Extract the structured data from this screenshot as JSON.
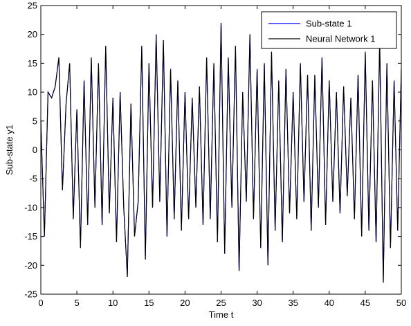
{
  "chart_data": {
    "type": "line",
    "title": "",
    "xlabel": "Time t",
    "ylabel": "Sub-state y1",
    "xlim": [
      0,
      50
    ],
    "ylim": [
      -25,
      25
    ],
    "xticks": [
      0,
      5,
      10,
      15,
      20,
      25,
      30,
      35,
      40,
      45,
      50
    ],
    "yticks": [
      -25,
      -20,
      -15,
      -10,
      -5,
      0,
      5,
      10,
      15,
      20,
      25
    ],
    "grid": false,
    "legend_position": "top-right",
    "x": [
      0,
      0.5,
      1.0,
      1.5,
      2.0,
      2.5,
      3.0,
      3.5,
      4.0,
      4.5,
      5.0,
      5.5,
      6.0,
      6.5,
      7.0,
      7.5,
      8.0,
      8.5,
      9.0,
      9.5,
      10.0,
      10.5,
      11.0,
      11.5,
      12.0,
      12.5,
      13.0,
      13.5,
      14.0,
      14.5,
      15.0,
      15.5,
      16.0,
      16.5,
      17.0,
      17.5,
      18.0,
      18.5,
      19.0,
      19.5,
      20.0,
      20.5,
      21.0,
      21.5,
      22.0,
      22.5,
      23.0,
      23.5,
      24.0,
      24.5,
      25.0,
      25.5,
      26.0,
      26.5,
      27.0,
      27.5,
      28.0,
      28.5,
      29.0,
      29.5,
      30.0,
      30.5,
      31.0,
      31.5,
      32.0,
      32.5,
      33.0,
      33.5,
      34.0,
      34.5,
      35.0,
      35.5,
      36.0,
      36.5,
      37.0,
      37.5,
      38.0,
      38.5,
      39.0,
      39.5,
      40.0,
      40.5,
      41.0,
      41.5,
      42.0,
      42.5,
      43.0,
      43.5,
      44.0,
      44.5,
      45.0,
      45.5,
      46.0,
      46.5,
      47.0,
      47.5,
      48.0,
      48.5,
      49.0,
      49.5,
      50.0
    ],
    "series": [
      {
        "name": "Sub-state 1",
        "color": "#0000ff",
        "values": [
          5,
          -15,
          10,
          9,
          11,
          16,
          -7,
          8,
          15,
          -12,
          7,
          -17,
          12,
          -13,
          16,
          -10,
          15,
          -13,
          18,
          -11,
          9,
          -16,
          10,
          -10,
          -22,
          8,
          -15,
          -9,
          18,
          -19,
          15,
          -10,
          20,
          -9,
          19,
          -15,
          14,
          -12,
          12,
          -14,
          10,
          -12,
          9,
          -10,
          11,
          -13,
          16,
          -12,
          15,
          -16,
          22,
          -18,
          16,
          -10,
          18,
          -21,
          10,
          -9,
          20,
          -12,
          14,
          -17,
          15,
          -20,
          17,
          -14,
          12,
          -16,
          14,
          -11,
          10,
          -12,
          15,
          -9,
          13,
          -14,
          13,
          -10,
          16,
          -13,
          12,
          -9,
          10,
          -11,
          11,
          -8,
          9,
          -12,
          13,
          -15,
          17,
          -14,
          12,
          -16,
          19,
          -23,
          15,
          -17,
          12,
          -14,
          14
        ]
      },
      {
        "name": "Neural Network 1",
        "color": "#000000",
        "values": [
          5,
          -15,
          10,
          9,
          11,
          16,
          -7,
          8,
          15,
          -12,
          7,
          -17,
          12,
          -13,
          16,
          -10,
          15,
          -13,
          18,
          -11,
          9,
          -16,
          10,
          -10,
          -22,
          8,
          -15,
          -9,
          18,
          -19,
          15,
          -10,
          20,
          -9,
          19,
          -15,
          14,
          -12,
          12,
          -14,
          10,
          -12,
          9,
          -10,
          11,
          -13,
          16,
          -12,
          15,
          -16,
          22,
          -18,
          16,
          -10,
          18,
          -21,
          10,
          -9,
          20,
          -12,
          14,
          -17,
          15,
          -20,
          17,
          -14,
          12,
          -16,
          14,
          -11,
          10,
          -12,
          15,
          -9,
          13,
          -14,
          13,
          -10,
          16,
          -13,
          12,
          -9,
          10,
          -11,
          11,
          -8,
          9,
          -12,
          13,
          -15,
          17,
          -14,
          12,
          -16,
          19,
          -23,
          15,
          -17,
          12,
          -14,
          14
        ]
      }
    ]
  }
}
